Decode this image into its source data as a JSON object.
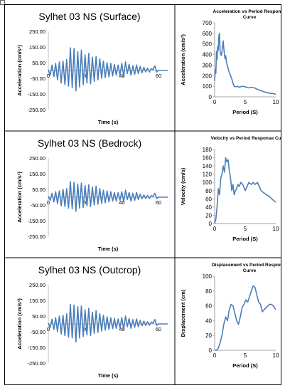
{
  "chart_data": [
    {
      "type": "line",
      "title": "Sylhet 03 NS (Surface)",
      "xlabel": "Time (s)",
      "ylabel": "Acceleration (cm/s²)",
      "xlim": [
        0,
        65
      ],
      "ylim": [
        -250,
        250
      ],
      "x_ticks": [
        "0",
        "20",
        "40",
        "60"
      ],
      "y_ticks": [
        "250.00",
        "150.00",
        "50.00",
        "-50.00",
        "-150.00",
        "-250.00"
      ],
      "series": [
        {
          "x": [
            0,
            1,
            2,
            3,
            4,
            5,
            6,
            7,
            8,
            9,
            10,
            11,
            12,
            13,
            14,
            15,
            16,
            17,
            18,
            19,
            20,
            21,
            22,
            23,
            24,
            25,
            26,
            27,
            28,
            29,
            30,
            31,
            32,
            33,
            34,
            35,
            36,
            37,
            38,
            39,
            40,
            41,
            42,
            43,
            44,
            45,
            46,
            47,
            48,
            49,
            50,
            51,
            52,
            53,
            54,
            55,
            56,
            57,
            58,
            59,
            60,
            61,
            62,
            63,
            64,
            65
          ],
          "y": [
            5,
            -30,
            35,
            -40,
            45,
            -60,
            55,
            -80,
            60,
            -90,
            70,
            -100,
            145,
            -110,
            140,
            -130,
            120,
            -105,
            130,
            -90,
            100,
            -80,
            110,
            -85,
            85,
            -70,
            90,
            -60,
            75,
            -50,
            60,
            -45,
            50,
            -40,
            45,
            -35,
            40,
            -30,
            35,
            -30,
            45,
            -40,
            55,
            -20,
            40,
            -30,
            30,
            -25,
            35,
            -20,
            25,
            -15,
            20,
            -10,
            15,
            -10,
            12,
            5,
            30,
            -10,
            0,
            0,
            0,
            0,
            0,
            0
          ]
        }
      ]
    },
    {
      "type": "line",
      "title": "Acceleration vs Period  Response Curve",
      "xlabel": "Period  (S)",
      "ylabel": "Acceleration (cm/s²)",
      "xlim": [
        0,
        10
      ],
      "ylim": [
        0,
        700
      ],
      "x_ticks": [
        "0",
        "5",
        "10"
      ],
      "y_ticks": [
        "700",
        "600",
        "500",
        "400",
        "300",
        "200",
        "100",
        "0"
      ],
      "series": [
        {
          "x": [
            0,
            0.1,
            0.2,
            0.3,
            0.4,
            0.5,
            0.6,
            0.7,
            0.8,
            0.9,
            1.0,
            1.1,
            1.2,
            1.3,
            1.4,
            1.5,
            1.6,
            1.7,
            1.8,
            1.9,
            2.0,
            2.2,
            2.4,
            2.6,
            2.8,
            3.0,
            3.2,
            3.5,
            3.8,
            4.0,
            4.5,
            5.0,
            5.5,
            6.0,
            6.5,
            7.0,
            7.5,
            8.0,
            8.5,
            9.0,
            9.5,
            10.0
          ],
          "y": [
            150,
            260,
            220,
            430,
            350,
            480,
            440,
            580,
            600,
            430,
            400,
            390,
            430,
            480,
            530,
            460,
            400,
            360,
            390,
            350,
            310,
            270,
            230,
            200,
            170,
            130,
            100,
            95,
            100,
            90,
            100,
            95,
            85,
            90,
            85,
            70,
            60,
            50,
            40,
            35,
            30,
            25
          ]
        }
      ]
    },
    {
      "type": "line",
      "title": "Sylhet 03 NS (Bedrock)",
      "xlabel": "Time (s)",
      "ylabel": "Acceleration (cm/s²)",
      "xlim": [
        0,
        65
      ],
      "ylim": [
        -250,
        250
      ],
      "x_ticks": [
        "0",
        "20",
        "40",
        "60"
      ],
      "y_ticks": [
        "250.00",
        "150.00",
        "50.00",
        "-50.00",
        "-150.00",
        "-250.00"
      ],
      "series": [
        {
          "x": [
            0,
            1,
            2,
            3,
            4,
            5,
            6,
            7,
            8,
            9,
            10,
            11,
            12,
            13,
            14,
            15,
            16,
            17,
            18,
            19,
            20,
            21,
            22,
            23,
            24,
            25,
            26,
            27,
            28,
            29,
            30,
            31,
            32,
            33,
            34,
            35,
            36,
            37,
            38,
            39,
            40,
            41,
            42,
            43,
            44,
            45,
            46,
            47,
            48,
            49,
            50,
            51,
            52,
            53,
            54,
            55,
            56,
            57,
            58,
            59,
            60,
            61,
            62,
            63,
            64,
            65
          ],
          "y": [
            5,
            -20,
            25,
            -30,
            35,
            -40,
            40,
            -55,
            50,
            -60,
            55,
            -70,
            100,
            -75,
            95,
            -90,
            85,
            -70,
            90,
            -65,
            75,
            -55,
            80,
            -60,
            65,
            -50,
            70,
            -45,
            55,
            -40,
            45,
            -35,
            40,
            -30,
            35,
            -25,
            30,
            -25,
            30,
            -20,
            35,
            -30,
            45,
            -15,
            30,
            -25,
            25,
            -20,
            30,
            -15,
            20,
            -10,
            15,
            -8,
            12,
            -8,
            10,
            5,
            25,
            -8,
            0,
            0,
            0,
            0,
            0,
            0
          ]
        }
      ]
    },
    {
      "type": "line",
      "title": "Velocity vs Period  Response Curve",
      "xlabel": "Period  (S)",
      "ylabel": "Velocity (cm/s)",
      "xlim": [
        0,
        10
      ],
      "ylim": [
        0,
        180
      ],
      "x_ticks": [
        "0",
        "5",
        "10"
      ],
      "y_ticks": [
        "180",
        "160",
        "140",
        "120",
        "100",
        "80",
        "60",
        "40",
        "20",
        "0"
      ],
      "series": [
        {
          "x": [
            0,
            0.2,
            0.4,
            0.6,
            0.8,
            1.0,
            1.2,
            1.4,
            1.6,
            1.8,
            2.0,
            2.2,
            2.4,
            2.6,
            2.8,
            3.0,
            3.2,
            3.4,
            3.6,
            3.8,
            4.0,
            4.3,
            4.6,
            5.0,
            5.3,
            5.6,
            6.0,
            6.3,
            6.6,
            7.0,
            7.3,
            7.6,
            8.0,
            8.5,
            9.0,
            9.5,
            10.0
          ],
          "y": [
            0,
            10,
            40,
            85,
            70,
            110,
            120,
            140,
            125,
            160,
            150,
            155,
            130,
            110,
            80,
            95,
            70,
            80,
            85,
            95,
            90,
            100,
            95,
            80,
            90,
            100,
            95,
            100,
            95,
            100,
            90,
            80,
            75,
            70,
            65,
            58,
            52
          ]
        }
      ]
    },
    {
      "type": "line",
      "title": "Sylhet 03 NS (Outcrop)",
      "xlabel": "Time (s)",
      "ylabel": "Acceleration (cm/s²)",
      "xlim": [
        0,
        65
      ],
      "ylim": [
        -250,
        250
      ],
      "x_ticks": [
        "0",
        "20",
        "40",
        "60"
      ],
      "y_ticks": [
        "250.00",
        "150.00",
        "50.00",
        "-50.00",
        "-150.00",
        "-250.00"
      ],
      "series": [
        {
          "x": [
            0,
            1,
            2,
            3,
            4,
            5,
            6,
            7,
            8,
            9,
            10,
            11,
            12,
            13,
            14,
            15,
            16,
            17,
            18,
            19,
            20,
            21,
            22,
            23,
            24,
            25,
            26,
            27,
            28,
            29,
            30,
            31,
            32,
            33,
            34,
            35,
            36,
            37,
            38,
            39,
            40,
            41,
            42,
            43,
            44,
            45,
            46,
            47,
            48,
            49,
            50,
            51,
            52,
            53,
            54,
            55,
            56,
            57,
            58,
            59,
            60,
            61,
            62,
            63,
            64,
            65
          ],
          "y": [
            5,
            -25,
            30,
            -35,
            40,
            -50,
            50,
            -65,
            55,
            -75,
            65,
            -85,
            125,
            -90,
            120,
            -115,
            110,
            -90,
            115,
            -80,
            90,
            -70,
            100,
            -75,
            75,
            -60,
            85,
            -55,
            65,
            -45,
            55,
            -40,
            45,
            -35,
            40,
            -30,
            35,
            -28,
            32,
            -25,
            40,
            -35,
            50,
            -18,
            35,
            -28,
            28,
            -22,
            32,
            -18,
            22,
            -12,
            18,
            -9,
            14,
            -9,
            11,
            5,
            28,
            -9,
            0,
            0,
            0,
            0,
            0,
            0
          ]
        }
      ]
    },
    {
      "type": "line",
      "title": "Displacement vs Period  Response Curve",
      "xlabel": "Period  (S)",
      "ylabel": "Displacement (cm)",
      "xlim": [
        0,
        10
      ],
      "ylim": [
        0,
        100
      ],
      "x_ticks": [
        "0",
        "5",
        "10"
      ],
      "y_ticks": [
        "100",
        "80",
        "60",
        "40",
        "20",
        "0"
      ],
      "series": [
        {
          "x": [
            0,
            0.3,
            0.6,
            0.9,
            1.2,
            1.5,
            1.8,
            2.1,
            2.4,
            2.7,
            3.0,
            3.3,
            3.6,
            3.9,
            4.2,
            4.5,
            4.8,
            5.1,
            5.4,
            5.7,
            6.0,
            6.3,
            6.6,
            6.9,
            7.2,
            7.5,
            7.8,
            8.1,
            8.4,
            8.7,
            9.0,
            9.3,
            9.6,
            10.0
          ],
          "y": [
            0,
            0,
            3,
            10,
            20,
            35,
            45,
            40,
            55,
            62,
            60,
            50,
            40,
            35,
            45,
            58,
            62,
            68,
            65,
            72,
            80,
            87,
            85,
            75,
            65,
            62,
            52,
            55,
            57,
            60,
            62,
            62,
            60,
            55
          ]
        }
      ]
    }
  ]
}
